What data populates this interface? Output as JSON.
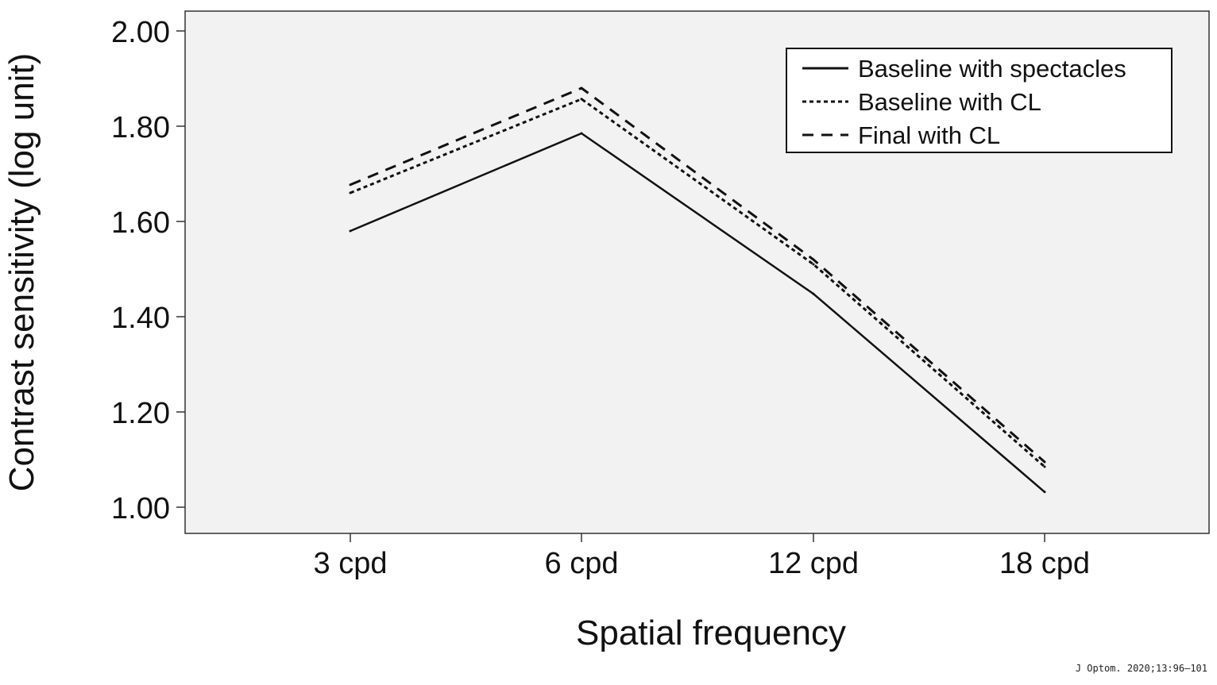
{
  "chart_data": {
    "type": "line",
    "title": "",
    "xlabel": "Spatial frequency",
    "ylabel": "Contrast sensitivity (log unit)",
    "categories": [
      "3 cpd",
      "6 cpd",
      "12 cpd",
      "18 cpd"
    ],
    "ylim": [
      0.945,
      2.04
    ],
    "yticks": [
      "1.00",
      "1.20",
      "1.40",
      "1.60",
      "1.80",
      "2.00"
    ],
    "grid": false,
    "legend_position": "top-right",
    "background": "#f2f2f2",
    "series": [
      {
        "name": "Baseline with spectacles",
        "style": "solid",
        "values": [
          1.58,
          1.785,
          1.448,
          1.032
        ]
      },
      {
        "name": "Baseline with CL",
        "style": "dotted",
        "values": [
          1.66,
          1.857,
          1.51,
          1.085
        ]
      },
      {
        "name": "Final with CL",
        "style": "dash-dot",
        "values": [
          1.677,
          1.88,
          1.52,
          1.095
        ]
      }
    ]
  },
  "citation": "J Optom. 2020;13:96–101"
}
